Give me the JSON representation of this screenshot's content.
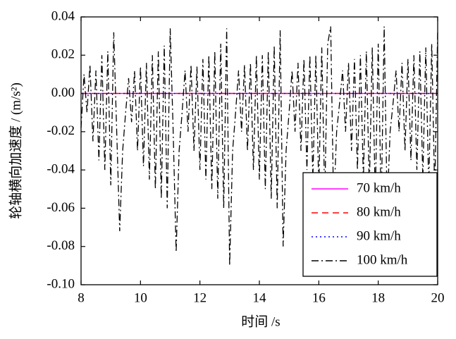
{
  "chart_data": {
    "type": "line",
    "xlabel": "时间 /s",
    "ylabel": "轮轴横向加速度 / (m/s²)",
    "xlim": [
      8,
      20
    ],
    "xticks": [
      8,
      10,
      12,
      14,
      16,
      18,
      20
    ],
    "ylim": [
      -0.1,
      0.04
    ],
    "yticks": [
      0.04,
      0.02,
      {
        "value": 0,
        "label": "0.00"
      },
      -0.02,
      -0.04,
      -0.06,
      -0.08,
      {
        "value": -0.1,
        "label": "-0.10"
      }
    ],
    "legend": "lower right",
    "x": [
      8,
      8.1,
      8.2,
      8.3,
      8.4,
      8.5,
      8.6,
      8.7,
      8.8,
      8.9,
      9,
      9.1,
      9.2,
      9.3,
      9.4,
      9.5,
      9.6,
      9.7,
      9.8,
      9.9,
      10,
      10.1,
      10.2,
      10.3,
      10.4,
      10.5,
      10.6,
      10.7,
      10.8,
      10.9,
      11,
      11.1,
      11.2,
      11.3,
      11.4,
      11.5,
      11.6,
      11.7,
      11.8,
      11.9,
      12,
      12.1,
      12.2,
      12.3,
      12.4,
      12.5,
      12.6,
      12.7,
      12.8,
      12.9,
      13,
      13.1,
      13.2,
      13.3,
      13.4,
      13.5,
      13.6,
      13.7,
      13.8,
      13.9,
      14,
      14.1,
      14.2,
      14.3,
      14.4,
      14.5,
      14.6,
      14.7,
      14.8,
      14.9,
      15,
      15.1,
      15.2,
      15.3,
      15.4,
      15.5,
      15.6,
      15.7,
      15.8,
      15.9,
      16,
      16.1,
      16.2,
      16.3,
      16.4,
      16.5,
      16.6,
      16.7,
      16.8,
      16.9,
      17,
      17.1,
      17.2,
      17.3,
      17.4,
      17.5,
      17.6,
      17.7,
      17.8,
      17.9,
      18,
      18.1,
      18.2,
      18.3,
      18.4,
      18.5,
      18.6,
      18.7,
      18.8,
      18.9,
      19,
      19.1,
      19.2,
      19.3,
      19.4,
      19.5,
      19.6,
      19.7,
      19.8,
      19.9,
      20
    ],
    "series": [
      {
        "name": "70 km/h",
        "color": "#ff00ff",
        "dash": "solid",
        "values": [
          0,
          0,
          0,
          0,
          0,
          0,
          0,
          0,
          0,
          0,
          0,
          0,
          0,
          0,
          0,
          0,
          0,
          0,
          0,
          0,
          0,
          0,
          0,
          0,
          0,
          0,
          0,
          0,
          0,
          0,
          0,
          0,
          0,
          0,
          0,
          0,
          0,
          0,
          0,
          0,
          0,
          0,
          0,
          0,
          0,
          0,
          0,
          0,
          0,
          0,
          0,
          0,
          0,
          0,
          0,
          0,
          0,
          0,
          0,
          0,
          0,
          0,
          0,
          0,
          0,
          0,
          0,
          0,
          0,
          0,
          0,
          0,
          0,
          0,
          0,
          0,
          0,
          0,
          0,
          0,
          0,
          0,
          0,
          0,
          0,
          0,
          0,
          0,
          0,
          0,
          0,
          0,
          0,
          0,
          0,
          0,
          0,
          0,
          0,
          0,
          0,
          0,
          0,
          0,
          0,
          0,
          0,
          0,
          0,
          0,
          0,
          0,
          0,
          0,
          0,
          0,
          0,
          0,
          0,
          0,
          0
        ]
      },
      {
        "name": "80 km/h",
        "color": "#ff0000",
        "dash": "dashed",
        "values": [
          0,
          0,
          0,
          0,
          0,
          0,
          0,
          0,
          0,
          0,
          0,
          0,
          0,
          0,
          0,
          0,
          0,
          0,
          0,
          0,
          0,
          0,
          0,
          0,
          0,
          0,
          0,
          0,
          0,
          0,
          0,
          0,
          0,
          0,
          0,
          0,
          0,
          0,
          0,
          0,
          0,
          0,
          0,
          0,
          0,
          0,
          0,
          0,
          0,
          0,
          0,
          0,
          0,
          0,
          0,
          0,
          0,
          0,
          0,
          0,
          0,
          0,
          0,
          0,
          0,
          0,
          0,
          0,
          0,
          0,
          0,
          0,
          0,
          0,
          0,
          0,
          0,
          0,
          0,
          0,
          0,
          0,
          0,
          0,
          0,
          0,
          0,
          0,
          0,
          0,
          0,
          0,
          0,
          0,
          0,
          0,
          0,
          0,
          0,
          0,
          0,
          0,
          0,
          0,
          0,
          0,
          0,
          0,
          0,
          0,
          0,
          0,
          0,
          0,
          0,
          0,
          0,
          0,
          0,
          0,
          0
        ]
      },
      {
        "name": "90 km/h",
        "color": "#0000ff",
        "dash": "dotted",
        "values": [
          0,
          0,
          0,
          0,
          0,
          0,
          0,
          0,
          0,
          0,
          0,
          0,
          0,
          0,
          0,
          0,
          0,
          0,
          0,
          0,
          0,
          0,
          0,
          0,
          0,
          0,
          0,
          0,
          0,
          0,
          0,
          0,
          0,
          0,
          0,
          0,
          0,
          0,
          0,
          0,
          0,
          0,
          0,
          0,
          0,
          0,
          0,
          0,
          0,
          0,
          0,
          0,
          0,
          0,
          0,
          0,
          0,
          0,
          0,
          0,
          0,
          0,
          0,
          0,
          0,
          0,
          0,
          0,
          0,
          0,
          0,
          0,
          0,
          0,
          0,
          0,
          0,
          0,
          0,
          0,
          0,
          0,
          0,
          0,
          0,
          0,
          0,
          0,
          0,
          0,
          0,
          0,
          0,
          0,
          0,
          0,
          0,
          0,
          0,
          0,
          0,
          0,
          0,
          0,
          0,
          0,
          0,
          0,
          0,
          0,
          0,
          0,
          0,
          0,
          0,
          0,
          0,
          0,
          0,
          0,
          0
        ]
      },
      {
        "name": "100 km/h",
        "color": "#000000",
        "dash": "dashdot",
        "values": [
          -0.018,
          0.01,
          -0.01,
          0.015,
          -0.025,
          0.012,
          -0.035,
          0.02,
          -0.04,
          0.022,
          -0.048,
          0.032,
          -0.02,
          -0.072,
          -0.03,
          -0.01,
          0.008,
          -0.015,
          0.012,
          -0.03,
          0.014,
          -0.038,
          0.016,
          -0.045,
          0.02,
          -0.05,
          0.022,
          -0.055,
          0.025,
          -0.06,
          0.034,
          -0.02,
          -0.083,
          -0.03,
          -0.01,
          0.012,
          -0.02,
          0.015,
          -0.03,
          0.014,
          -0.04,
          0.018,
          -0.045,
          0.02,
          -0.05,
          0.022,
          -0.055,
          0.026,
          -0.06,
          0.034,
          -0.09,
          -0.03,
          -0.01,
          0.012,
          -0.02,
          0.015,
          -0.03,
          0.016,
          -0.04,
          0.02,
          -0.045,
          0.02,
          -0.05,
          0.022,
          -0.055,
          0.025,
          -0.06,
          0.033,
          -0.08,
          -0.03,
          -0.01,
          0.012,
          -0.02,
          0.016,
          -0.03,
          0.018,
          -0.04,
          0.02,
          -0.045,
          0.02,
          -0.05,
          0.024,
          -0.055,
          0.026,
          0.035,
          -0.06,
          -0.02,
          -0.005,
          0.012,
          -0.02,
          0.016,
          -0.03,
          0.018,
          -0.04,
          0.02,
          -0.045,
          0.022,
          -0.05,
          0.024,
          -0.055,
          0.026,
          -0.06,
          0.035,
          -0.06,
          -0.02,
          -0.005,
          0.012,
          -0.02,
          0.016,
          -0.03,
          0.018,
          -0.035,
          0.02,
          -0.04,
          0.022,
          -0.045,
          0.024,
          -0.05,
          0.026,
          -0.052,
          0.033
        ]
      }
    ]
  }
}
